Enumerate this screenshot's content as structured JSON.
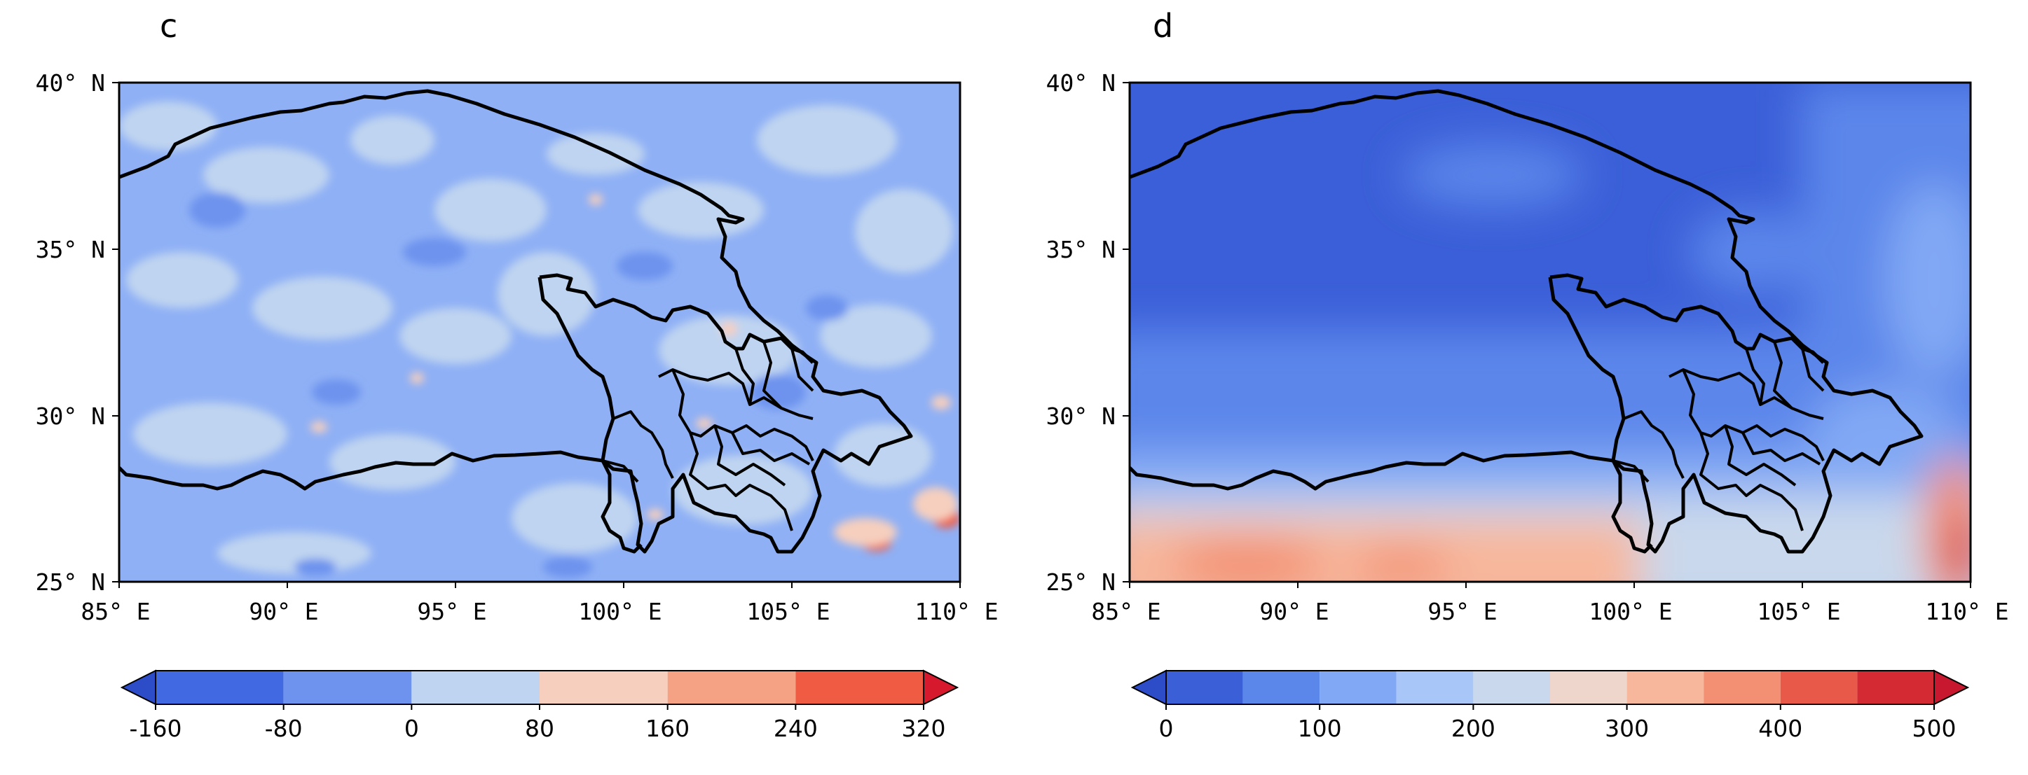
{
  "panels": [
    {
      "title": "c",
      "x_ticks": [
        "85° E",
        "90° E",
        "95° E",
        "100° E",
        "105° E",
        "110° E"
      ],
      "y_ticks": [
        "40° N",
        "35° N",
        "30° N",
        "25° N"
      ],
      "colorbar": {
        "levels": [
          -160,
          -80,
          0,
          80,
          160,
          240,
          320
        ],
        "labels": [
          "-160",
          "-80",
          "0",
          "80",
          "160",
          "240",
          "320"
        ],
        "colors": [
          "#4169e1",
          "#6d93ee",
          "#bfd4f0",
          "#f6cfbe",
          "#f4a184",
          "#ef5b43"
        ],
        "under_color": "#2c4cc8",
        "over_color": "#d7192d"
      },
      "background_color": "#8fb0f5"
    },
    {
      "title": "d",
      "x_ticks": [
        "85° E",
        "90° E",
        "95° E",
        "100° E",
        "105° E",
        "110° E"
      ],
      "y_ticks": [
        "40° N",
        "35° N",
        "30° N",
        "25° N"
      ],
      "colorbar": {
        "levels": [
          0,
          50,
          100,
          150,
          200,
          250,
          300,
          350,
          400,
          450,
          500
        ],
        "labels": [
          "0",
          "100",
          "200",
          "300",
          "400",
          "500"
        ],
        "colors": [
          "#3a5fd6",
          "#5b86ea",
          "#81a8f4",
          "#a8c6f8",
          "#c9d8ec",
          "#eed6cc",
          "#f7b79c",
          "#f38f72",
          "#e8594a",
          "#d42a33"
        ],
        "under_color": "#2c4cc8",
        "over_color": "#c81830"
      },
      "background_color": "#3b5fd8"
    }
  ]
}
